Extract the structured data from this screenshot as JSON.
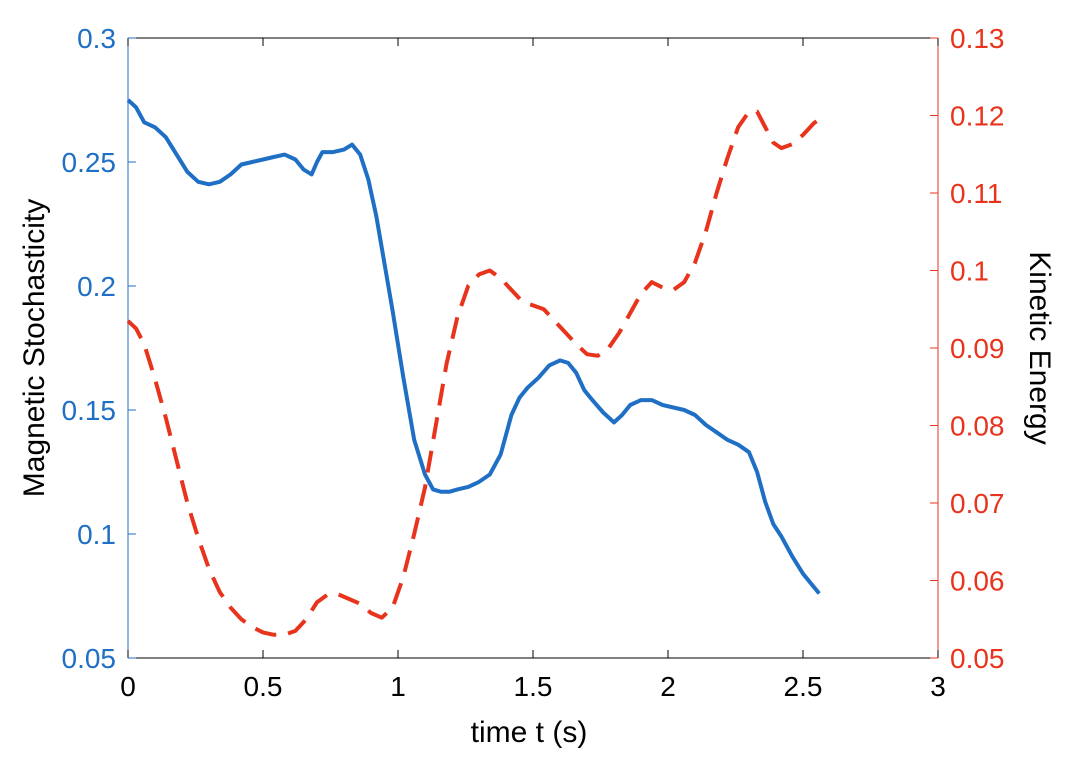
{
  "chart_data": {
    "type": "line",
    "xlabel": "time  t (s)",
    "ylabel_left": "Magnetic Stochasticity",
    "ylabel_right": "Kinetic Energy",
    "xlim": [
      0,
      3
    ],
    "ylim_left": [
      0.05,
      0.3
    ],
    "ylim_right": [
      0.05,
      0.13
    ],
    "x_ticks": [
      "0",
      "0.5",
      "1",
      "1.5",
      "2",
      "2.5",
      "3"
    ],
    "y_left_ticks": [
      "0.05",
      "0.1",
      "0.15",
      "0.2",
      "0.25",
      "0.3"
    ],
    "y_right_ticks": [
      "0.05",
      "0.06",
      "0.07",
      "0.08",
      "0.09",
      "0.1",
      "0.11",
      "0.12",
      "0.13"
    ],
    "grid": false,
    "colors": {
      "left": "#1f6fc5",
      "right": "#e8341c",
      "axes": "#000000"
    },
    "series": [
      {
        "axis": "left",
        "style": "solid",
        "color": "#1f6fc5",
        "x": [
          0,
          0.03,
          0.06,
          0.1,
          0.14,
          0.18,
          0.22,
          0.26,
          0.3,
          0.34,
          0.38,
          0.42,
          0.46,
          0.5,
          0.54,
          0.58,
          0.62,
          0.65,
          0.68,
          0.7,
          0.72,
          0.76,
          0.8,
          0.83,
          0.86,
          0.89,
          0.92,
          0.95,
          0.98,
          1.02,
          1.06,
          1.1,
          1.13,
          1.16,
          1.19,
          1.22,
          1.26,
          1.3,
          1.34,
          1.38,
          1.42,
          1.45,
          1.48,
          1.52,
          1.56,
          1.6,
          1.63,
          1.66,
          1.69,
          1.72,
          1.76,
          1.8,
          1.83,
          1.86,
          1.9,
          1.94,
          1.98,
          2.02,
          2.06,
          2.1,
          2.14,
          2.18,
          2.22,
          2.26,
          2.3,
          2.33,
          2.36,
          2.39,
          2.42,
          2.46,
          2.5,
          2.53,
          2.56
        ],
        "values": [
          0.275,
          0.272,
          0.266,
          0.264,
          0.26,
          0.253,
          0.246,
          0.242,
          0.241,
          0.242,
          0.245,
          0.249,
          0.25,
          0.251,
          0.252,
          0.253,
          0.251,
          0.247,
          0.245,
          0.25,
          0.254,
          0.254,
          0.255,
          0.257,
          0.253,
          0.243,
          0.228,
          0.209,
          0.19,
          0.163,
          0.138,
          0.124,
          0.118,
          0.117,
          0.117,
          0.118,
          0.119,
          0.121,
          0.124,
          0.132,
          0.148,
          0.155,
          0.159,
          0.163,
          0.168,
          0.17,
          0.169,
          0.165,
          0.158,
          0.154,
          0.149,
          0.145,
          0.148,
          0.152,
          0.154,
          0.154,
          0.152,
          0.151,
          0.15,
          0.148,
          0.144,
          0.141,
          0.138,
          0.136,
          0.133,
          0.125,
          0.113,
          0.104,
          0.099,
          0.091,
          0.084,
          0.08,
          0.076
        ]
      },
      {
        "axis": "right",
        "style": "dashed",
        "color": "#e8341c",
        "x": [
          0,
          0.03,
          0.06,
          0.1,
          0.14,
          0.18,
          0.22,
          0.26,
          0.3,
          0.34,
          0.38,
          0.42,
          0.46,
          0.5,
          0.54,
          0.58,
          0.62,
          0.66,
          0.7,
          0.74,
          0.78,
          0.82,
          0.86,
          0.9,
          0.94,
          0.98,
          1.02,
          1.06,
          1.1,
          1.14,
          1.18,
          1.22,
          1.26,
          1.3,
          1.34,
          1.38,
          1.42,
          1.46,
          1.5,
          1.54,
          1.58,
          1.62,
          1.66,
          1.7,
          1.74,
          1.78,
          1.82,
          1.86,
          1.9,
          1.94,
          1.98,
          2.02,
          2.06,
          2.1,
          2.14,
          2.18,
          2.22,
          2.26,
          2.3,
          2.33,
          2.36,
          2.39,
          2.42,
          2.46,
          2.5,
          2.54,
          2.56
        ],
        "values": [
          0.0935,
          0.0925,
          0.0905,
          0.086,
          0.081,
          0.0755,
          0.07,
          0.0655,
          0.0615,
          0.0585,
          0.0565,
          0.055,
          0.054,
          0.0533,
          0.053,
          0.053,
          0.0535,
          0.055,
          0.0572,
          0.0582,
          0.0582,
          0.0576,
          0.057,
          0.0558,
          0.0552,
          0.0565,
          0.0605,
          0.066,
          0.072,
          0.08,
          0.088,
          0.094,
          0.098,
          0.0995,
          0.1,
          0.099,
          0.0975,
          0.096,
          0.0955,
          0.095,
          0.0935,
          0.092,
          0.0905,
          0.0892,
          0.089,
          0.09,
          0.092,
          0.0945,
          0.097,
          0.0985,
          0.0978,
          0.0975,
          0.0985,
          0.101,
          0.105,
          0.11,
          0.1145,
          0.1185,
          0.1205,
          0.1205,
          0.1185,
          0.1165,
          0.1158,
          0.1163,
          0.1175,
          0.119,
          0.1195
        ]
      }
    ]
  }
}
